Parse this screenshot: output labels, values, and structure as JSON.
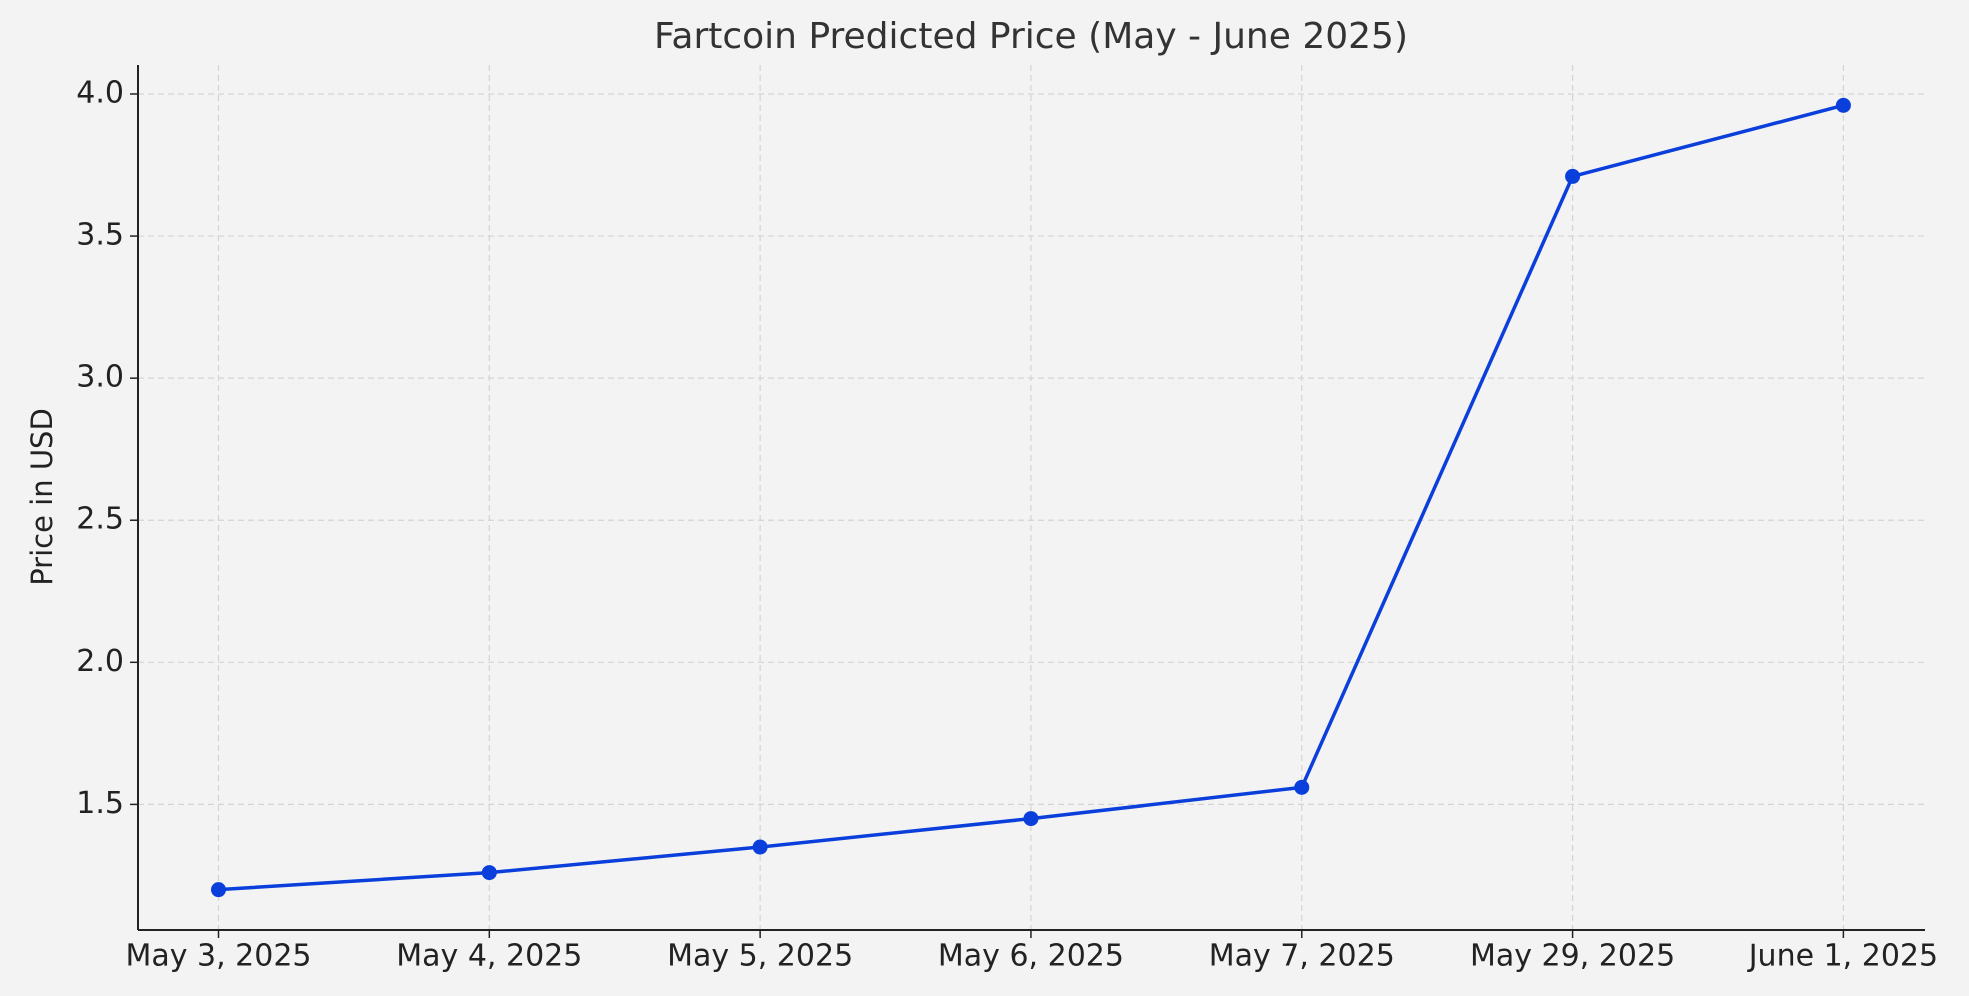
{
  "chart_data": {
    "type": "line",
    "title": "Fartcoin Predicted Price (May - June 2025)",
    "ylabel": "Price in USD",
    "categories": [
      "May 3, 2025",
      "May 4, 2025",
      "May 5, 2025",
      "May 6, 2025",
      "May 7, 2025",
      "May 29, 2025",
      "June 1, 2025"
    ],
    "values": [
      1.2,
      1.26,
      1.35,
      1.45,
      1.56,
      3.71,
      3.96
    ],
    "color": "#0a3fdc",
    "ylim": [
      1.058,
      4.102
    ],
    "yticks": [
      1.5,
      {
        "value": 2,
        "label": "2.0"
      },
      2.5,
      {
        "value": 3,
        "label": "3.0"
      },
      3.5,
      {
        "value": 4,
        "label": "4.0"
      }
    ],
    "grid": true
  }
}
